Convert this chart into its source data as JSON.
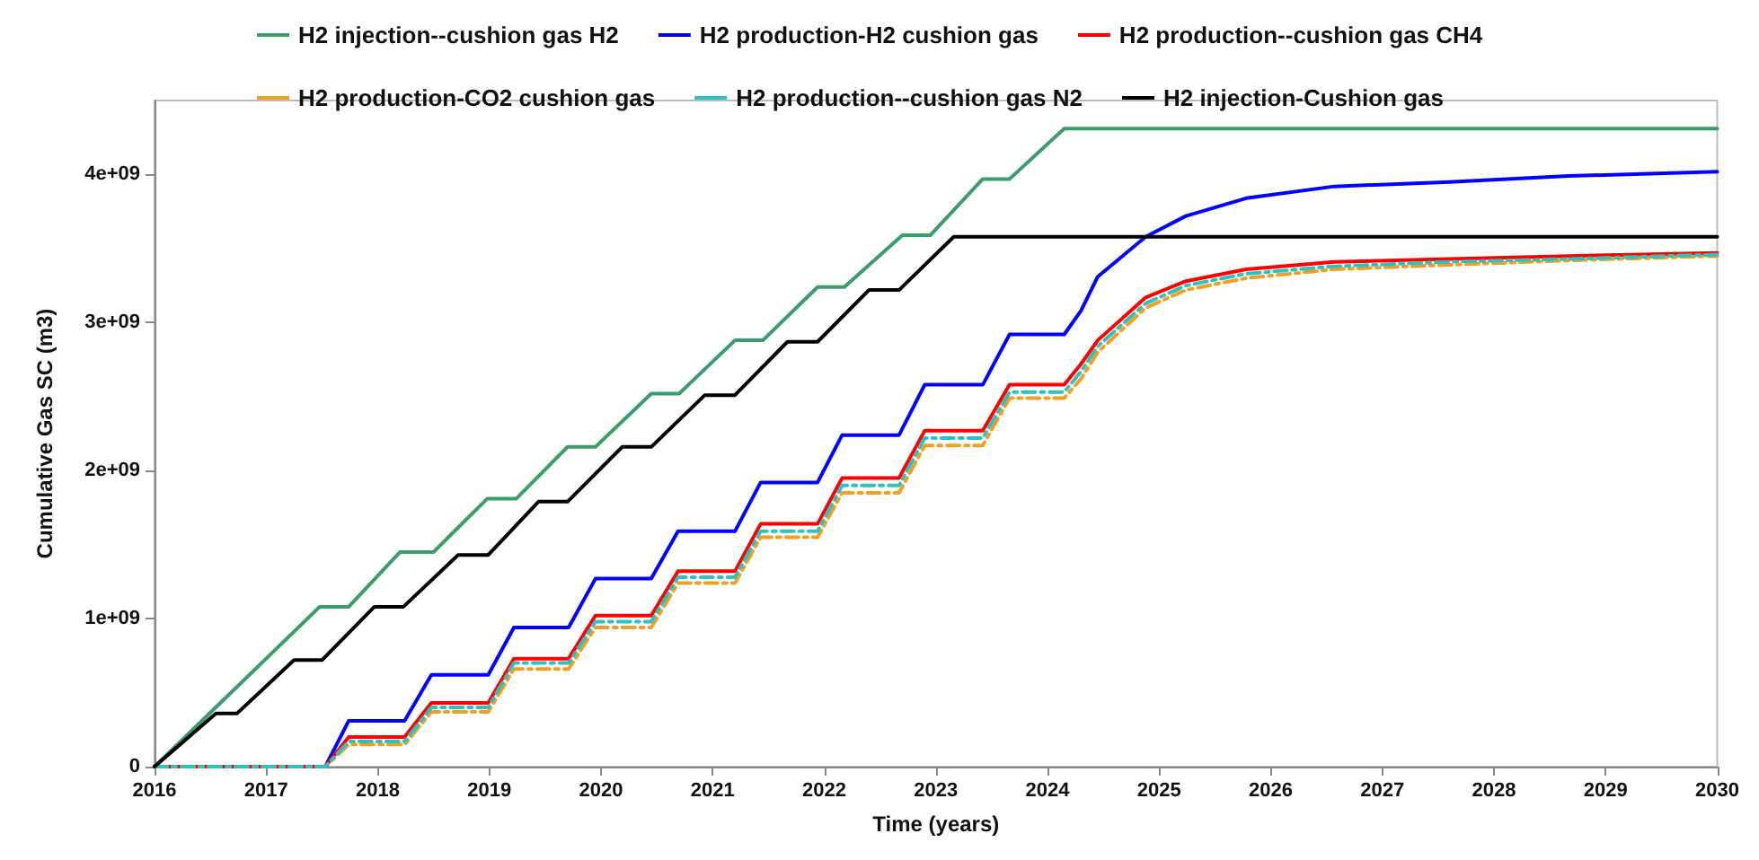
{
  "chart_data": {
    "type": "line",
    "xlabel": "Time (years)",
    "ylabel": "Cumulative Gas SC (m3)",
    "xlim": [
      2016,
      2030
    ],
    "xticks": [
      2016,
      2017,
      2018,
      2019,
      2020,
      2021,
      2022,
      2023,
      2024,
      2025,
      2026,
      2027,
      2028,
      2029,
      2030
    ],
    "ylim": [
      0,
      4500000000.0
    ],
    "yticks": [
      0,
      {
        "value": 1000000000.0,
        "label": "1e+09"
      },
      {
        "value": 2000000000.0,
        "label": "2e+09"
      },
      {
        "value": 3000000000.0,
        "label": "3e+09"
      },
      {
        "value": 4000000000.0,
        "label": "4e+09"
      }
    ],
    "grid": false,
    "legend": "top",
    "marker": "none",
    "series": [
      {
        "name": "H2 injection--cushion gas H2",
        "color": "#3a9d6a",
        "line_style": "solid",
        "x": [
          2016,
          2017.48,
          2017.74,
          2018.2,
          2018.5,
          2018.98,
          2019.24,
          2019.7,
          2019.95,
          2020.45,
          2020.7,
          2021.2,
          2021.45,
          2021.94,
          2022.18,
          2022.7,
          2022.95,
          2023.42,
          2023.66,
          2024.15,
          2030
        ],
        "values": [
          0,
          1080000000.0,
          1080000000.0,
          1450000000.0,
          1450000000.0,
          1810000000.0,
          1810000000.0,
          2160000000.0,
          2160000000.0,
          2520000000.0,
          2520000000.0,
          2880000000.0,
          2880000000.0,
          3240000000.0,
          3240000000.0,
          3590000000.0,
          3590000000.0,
          3970000000.0,
          3970000000.0,
          4310000000.0,
          4310000000.0
        ]
      },
      {
        "name": "H2 production-H2 cushion gas",
        "color": "#0000ff",
        "line_style": "solid",
        "x": [
          2016,
          2017.53,
          2017.74,
          2018.24,
          2018.48,
          2018.99,
          2019.22,
          2019.71,
          2019.95,
          2020.45,
          2020.69,
          2021.2,
          2021.43,
          2021.94,
          2022.16,
          2022.67,
          2022.9,
          2023.42,
          2023.66,
          2024.15,
          2024.3,
          2024.45,
          2024.88,
          2025.24,
          2025.78,
          2026.57,
          2027.6,
          2028.67,
          2030
        ],
        "values": [
          0,
          0,
          310000000.0,
          310000000.0,
          620000000.0,
          620000000.0,
          940000000.0,
          940000000.0,
          1270000000.0,
          1270000000.0,
          1590000000.0,
          1590000000.0,
          1920000000.0,
          1920000000.0,
          2240000000.0,
          2240000000.0,
          2580000000.0,
          2580000000.0,
          2920000000.0,
          2920000000.0,
          3080000000.0,
          3310000000.0,
          3580000000.0,
          3720000000.0,
          3840000000.0,
          3920000000.0,
          3950000000.0,
          3990000000.0,
          4020000000.0
        ]
      },
      {
        "name": "H2 production--cushion gas CH4",
        "color": "#ff0000",
        "line_style": "solid",
        "x": [
          2016,
          2017.53,
          2017.74,
          2018.24,
          2018.48,
          2018.99,
          2019.22,
          2019.71,
          2019.95,
          2020.45,
          2020.69,
          2021.2,
          2021.43,
          2021.94,
          2022.16,
          2022.67,
          2022.9,
          2023.42,
          2023.66,
          2024.15,
          2024.3,
          2024.45,
          2024.88,
          2025.24,
          2025.78,
          2026.57,
          2027.6,
          2028.67,
          2030
        ],
        "values": [
          0,
          0,
          200000000.0,
          200000000.0,
          430000000.0,
          430000000.0,
          730000000.0,
          730000000.0,
          1020000000.0,
          1020000000.0,
          1320000000.0,
          1320000000.0,
          1640000000.0,
          1640000000.0,
          1950000000.0,
          1950000000.0,
          2270000000.0,
          2270000000.0,
          2580000000.0,
          2580000000.0,
          2720000000.0,
          2880000000.0,
          3170000000.0,
          3280000000.0,
          3360000000.0,
          3410000000.0,
          3430000000.0,
          3450000000.0,
          3470000000.0
        ]
      },
      {
        "name": "H2 production-CO2 cushion gas",
        "color": "#f0a020",
        "line_style": "dashed",
        "x": [
          2016,
          2017.53,
          2017.74,
          2018.24,
          2018.48,
          2018.99,
          2019.22,
          2019.71,
          2019.95,
          2020.45,
          2020.69,
          2021.2,
          2021.43,
          2021.94,
          2022.16,
          2022.67,
          2022.9,
          2023.42,
          2023.66,
          2024.15,
          2024.3,
          2024.45,
          2024.88,
          2025.24,
          2025.78,
          2026.57,
          2027.6,
          2028.67,
          2030
        ],
        "values": [
          0,
          0,
          150000000.0,
          150000000.0,
          370000000.0,
          370000000.0,
          660000000.0,
          660000000.0,
          940000000.0,
          940000000.0,
          1240000000.0,
          1240000000.0,
          1550000000.0,
          1550000000.0,
          1850000000.0,
          1850000000.0,
          2170000000.0,
          2170000000.0,
          2490000000.0,
          2490000000.0,
          2620000000.0,
          2800000000.0,
          3100000000.0,
          3220000000.0,
          3300000000.0,
          3360000000.0,
          3390000000.0,
          3420000000.0,
          3450000000.0
        ]
      },
      {
        "name": "H2 production--cushion gas N2",
        "color": "#30c0c0",
        "line_style": "dashed",
        "x": [
          2016,
          2017.53,
          2017.74,
          2018.24,
          2018.48,
          2018.99,
          2019.22,
          2019.71,
          2019.95,
          2020.45,
          2020.69,
          2021.2,
          2021.43,
          2021.94,
          2022.16,
          2022.67,
          2022.9,
          2023.42,
          2023.66,
          2024.15,
          2024.3,
          2024.45,
          2024.88,
          2025.24,
          2025.78,
          2026.57,
          2027.6,
          2028.67,
          2030
        ],
        "values": [
          0,
          0,
          170000000.0,
          170000000.0,
          400000000.0,
          400000000.0,
          700000000.0,
          700000000.0,
          980000000.0,
          980000000.0,
          1280000000.0,
          1280000000.0,
          1590000000.0,
          1590000000.0,
          1900000000.0,
          1900000000.0,
          2220000000.0,
          2220000000.0,
          2530000000.0,
          2530000000.0,
          2670000000.0,
          2840000000.0,
          3130000000.0,
          3250000000.0,
          3330000000.0,
          3380000000.0,
          3410000000.0,
          3430000000.0,
          3460000000.0
        ]
      },
      {
        "name": "H2 injection-Cushion gas",
        "color": "#000000",
        "line_style": "solid",
        "x": [
          2016,
          2016.55,
          2016.74,
          2017.25,
          2017.5,
          2017.97,
          2018.23,
          2018.72,
          2018.99,
          2019.44,
          2019.7,
          2020.19,
          2020.45,
          2020.93,
          2021.2,
          2021.67,
          2021.94,
          2022.4,
          2022.67,
          2023.16,
          2030
        ],
        "values": [
          0,
          360000000.0,
          360000000.0,
          720000000.0,
          720000000.0,
          1080000000.0,
          1080000000.0,
          1430000000.0,
          1430000000.0,
          1790000000.0,
          1790000000.0,
          2160000000.0,
          2160000000.0,
          2510000000.0,
          2510000000.0,
          2870000000.0,
          2870000000.0,
          3220000000.0,
          3220000000.0,
          3580000000.0,
          3580000000.0
        ]
      }
    ]
  }
}
